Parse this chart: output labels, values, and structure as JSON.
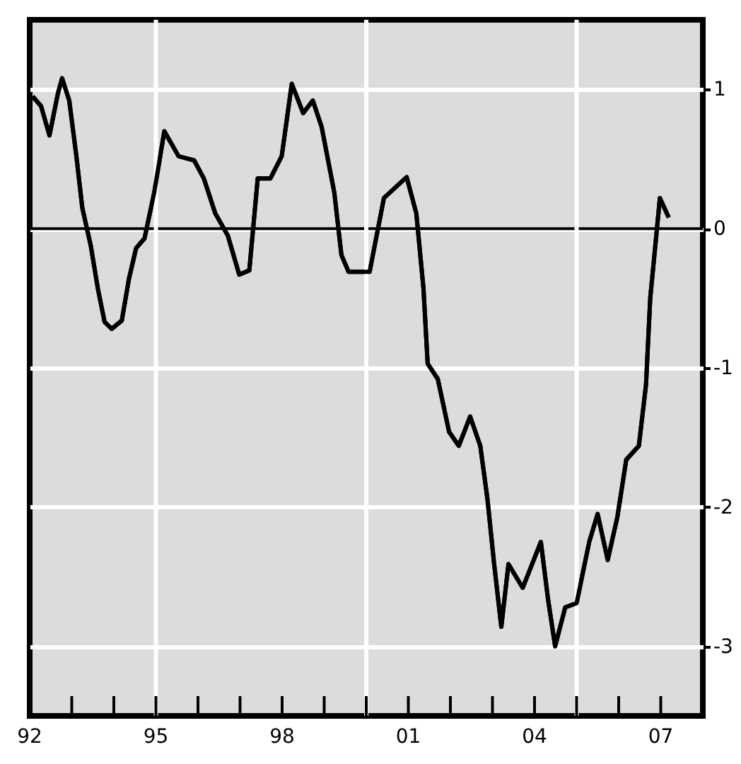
{
  "chart_data": {
    "type": "line",
    "x": [
      1992.07,
      1992.27,
      1992.47,
      1992.67,
      1992.77,
      1992.94,
      1993.11,
      1993.25,
      1993.45,
      1993.62,
      1993.78,
      1993.95,
      1994.19,
      1994.36,
      1994.53,
      1994.73,
      1994.96,
      1995.2,
      1995.54,
      1995.91,
      1996.14,
      1996.41,
      1996.71,
      1996.98,
      1997.22,
      1997.42,
      1997.72,
      1997.99,
      1998.23,
      1998.5,
      1998.73,
      1998.94,
      1999.24,
      1999.41,
      1999.58,
      2000.08,
      2000.42,
      2000.96,
      2001.19,
      2001.36,
      2001.46,
      2001.7,
      2001.97,
      2002.2,
      2002.47,
      2002.71,
      2002.88,
      2003.04,
      2003.21,
      2003.38,
      2003.72,
      2004.15,
      2004.32,
      2004.49,
      2004.73,
      2005.0,
      2005.3,
      2005.5,
      2005.74,
      2005.97,
      2006.18,
      2006.48,
      2006.65,
      2006.75,
      2006.98,
      2007.19
    ],
    "series": [
      {
        "color": "#000000",
        "values": [
          0.95,
          0.88,
          0.67,
          0.97,
          1.08,
          0.92,
          0.52,
          0.15,
          -0.12,
          -0.43,
          -0.67,
          -0.72,
          -0.66,
          -0.36,
          -0.14,
          -0.07,
          0.26,
          0.7,
          0.52,
          0.49,
          0.36,
          0.11,
          -0.05,
          -0.33,
          -0.3,
          0.36,
          0.36,
          0.52,
          1.04,
          0.83,
          0.92,
          0.73,
          0.26,
          -0.19,
          -0.31,
          -0.31,
          0.22,
          0.37,
          0.11,
          -0.43,
          -0.97,
          -1.08,
          -1.46,
          -1.56,
          -1.35,
          -1.56,
          -1.94,
          -2.41,
          -2.86,
          -2.41,
          -2.58,
          -2.25,
          -2.66,
          -3.0,
          -2.72,
          -2.69,
          -2.25,
          -2.05,
          -2.38,
          -2.07,
          -1.66,
          -1.56,
          -1.12,
          -0.5,
          0.22,
          0.08
        ]
      }
    ],
    "xlim": [
      1992,
      2008
    ],
    "xticks": [
      {
        "value": 1992,
        "label": "92"
      },
      {
        "value": 1993,
        "label": null
      },
      {
        "value": 1994,
        "label": null
      },
      {
        "value": 1995,
        "label": "95"
      },
      {
        "value": 1996,
        "label": null
      },
      {
        "value": 1997,
        "label": null
      },
      {
        "value": 1998,
        "label": "98"
      },
      {
        "value": 1999,
        "label": null
      },
      {
        "value": 2000,
        "label": null
      },
      {
        "value": 2001,
        "label": "01"
      },
      {
        "value": 2002,
        "label": null
      },
      {
        "value": 2003,
        "label": null
      },
      {
        "value": 2004,
        "label": "04"
      },
      {
        "value": 2005,
        "label": null
      },
      {
        "value": 2006,
        "label": null
      },
      {
        "value": 2007,
        "label": "07"
      },
      {
        "value": 2008,
        "label": null
      }
    ],
    "ylim": [
      -3.5,
      1.5
    ],
    "yticks": [
      1,
      0,
      -1,
      -2,
      -3
    ],
    "grid": "y",
    "line_style": "solid",
    "ref_lines": [
      {
        "axis": "y",
        "value": 0,
        "color": "#000000"
      },
      {
        "axis": "x",
        "value": 1995,
        "color": "#ffffff"
      },
      {
        "axis": "x",
        "value": 2000,
        "color": "#ffffff"
      },
      {
        "axis": "x",
        "value": 2005,
        "color": "#ffffff"
      }
    ]
  }
}
